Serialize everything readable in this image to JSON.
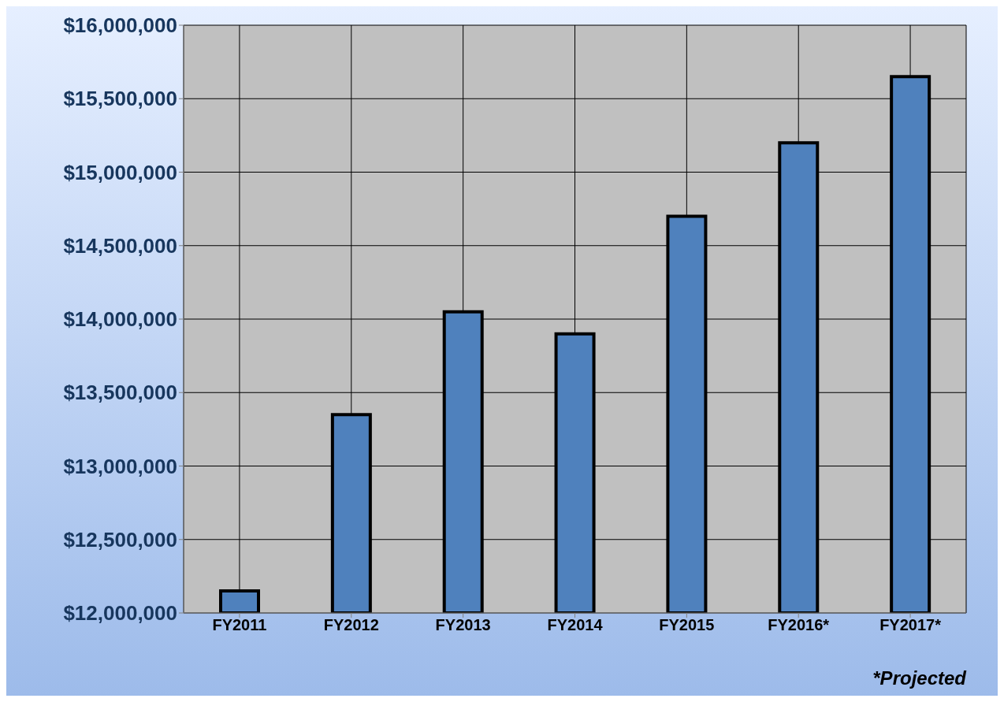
{
  "chart_data": {
    "type": "bar",
    "categories": [
      "FY2011",
      "FY2012",
      "FY2013",
      "FY2014",
      "FY2015",
      "FY2016*",
      "FY2017*"
    ],
    "values": [
      12150000,
      13350000,
      14050000,
      13900000,
      14700000,
      15200000,
      15650000
    ],
    "color": "#4f81bd",
    "ylim": [
      12000000,
      16000000
    ],
    "yticks": [
      {
        "value": 12000000,
        "label": "$12,000,000"
      },
      {
        "value": 12500000,
        "label": "$12,500,000"
      },
      {
        "value": 13000000,
        "label": "$13,000,000"
      },
      {
        "value": 13500000,
        "label": "$13,500,000"
      },
      {
        "value": 14000000,
        "label": "$14,000,000"
      },
      {
        "value": 14500000,
        "label": "$14,500,000"
      },
      {
        "value": 15000000,
        "label": "$15,000,000"
      },
      {
        "value": 15500000,
        "label": "$15,500,000"
      },
      {
        "value": 16000000,
        "label": "$16,000,000"
      }
    ],
    "grid": true,
    "annotations": [
      "*Projected"
    ]
  }
}
